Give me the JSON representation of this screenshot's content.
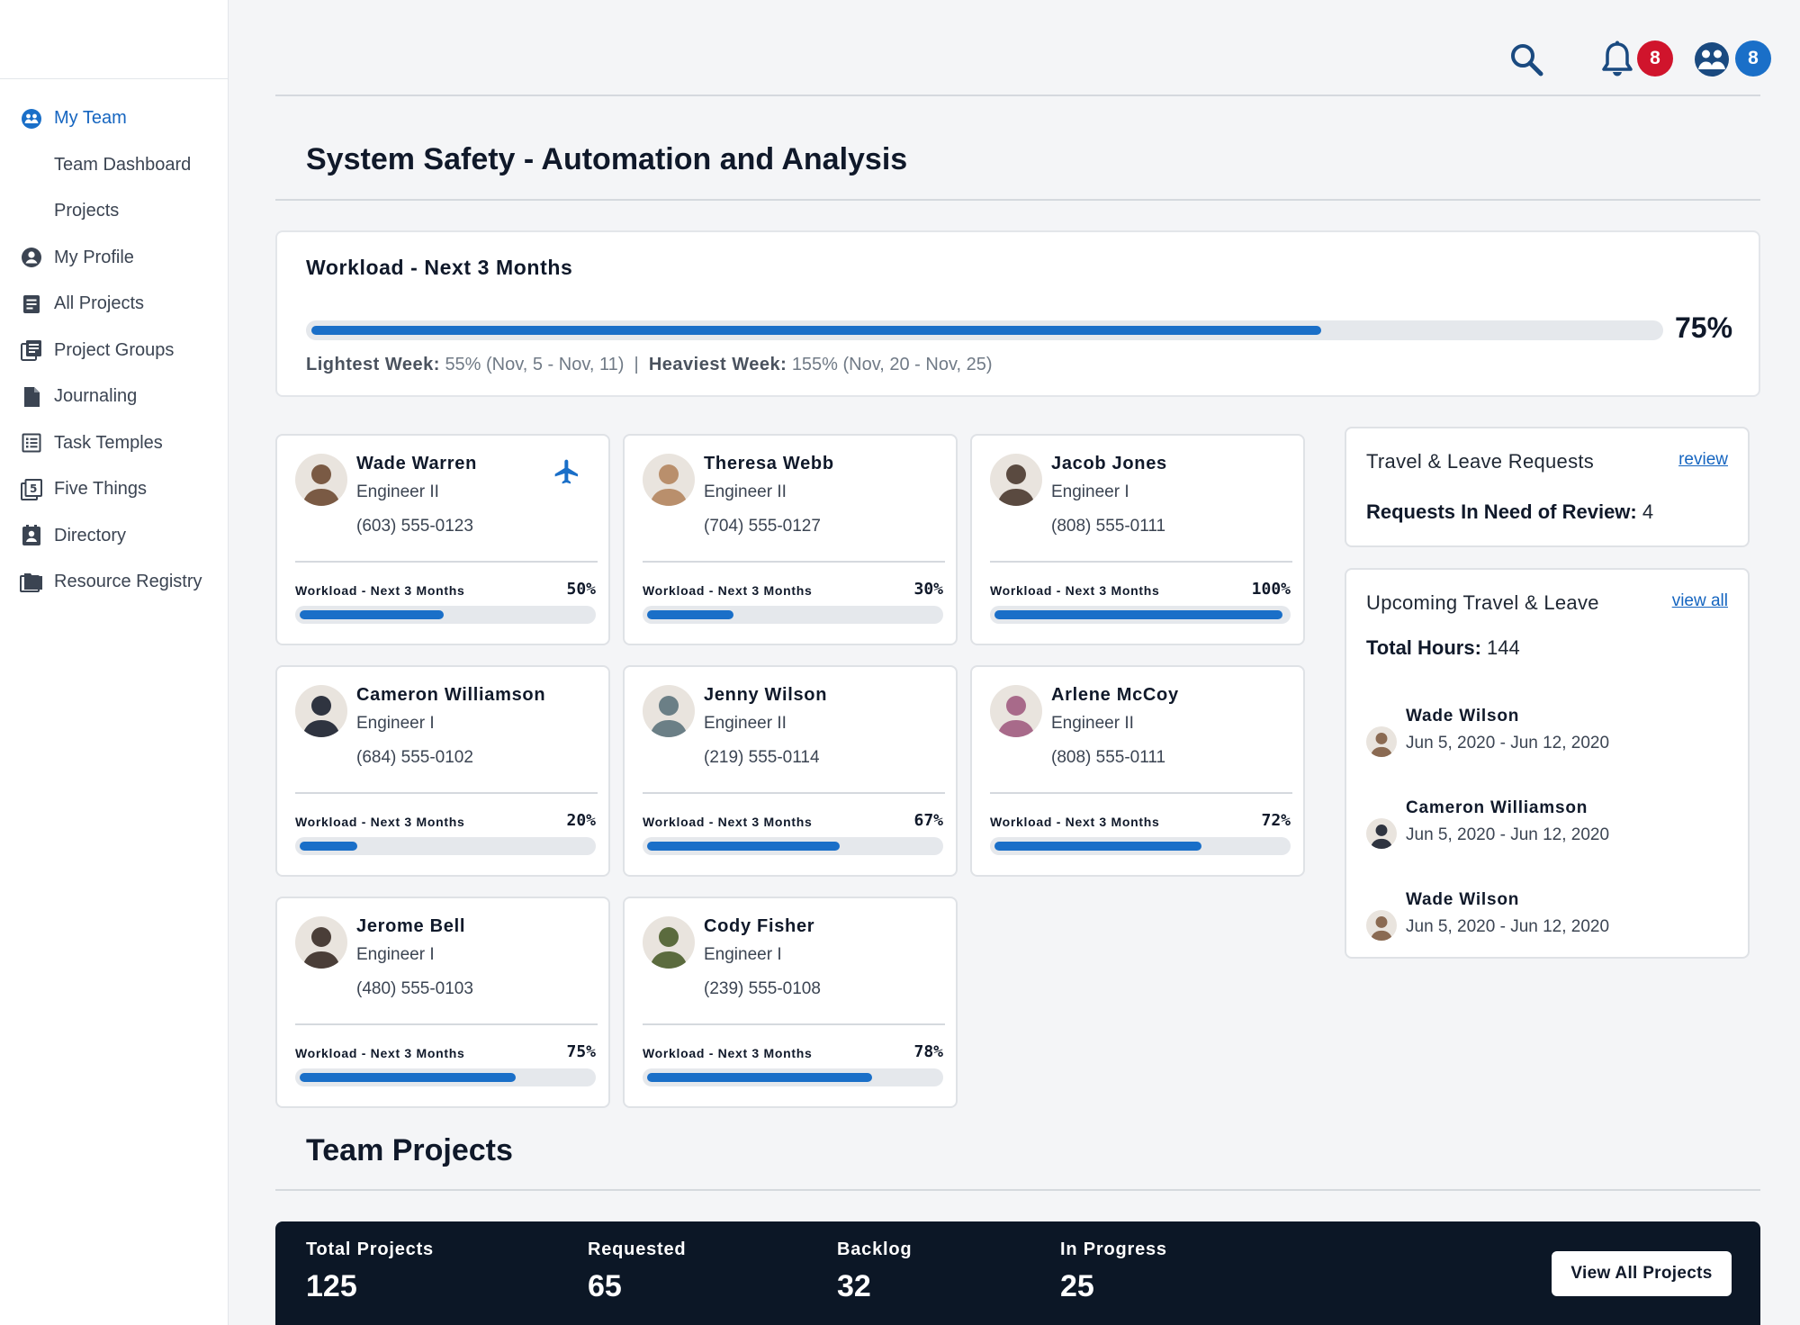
{
  "sidebar": {
    "items": [
      {
        "label": "My Team",
        "icon": "team-icon",
        "active": true
      },
      {
        "label": "Team Dashboard"
      },
      {
        "label": "Projects"
      },
      {
        "label": "My Profile",
        "icon": "profile-icon"
      },
      {
        "label": "All Projects",
        "icon": "document-list-icon"
      },
      {
        "label": "Project Groups",
        "icon": "stacked-documents-icon"
      },
      {
        "label": "Journaling",
        "icon": "file-icon"
      },
      {
        "label": "Task Temples",
        "icon": "checklist-icon"
      },
      {
        "label": "Five Things",
        "icon": "number-five-icon"
      },
      {
        "label": "Directory",
        "icon": "contact-book-icon"
      },
      {
        "label": "Resource Registry",
        "icon": "folder-icon"
      }
    ]
  },
  "topbar": {
    "notifications_count": "8",
    "team_count": "8"
  },
  "page": {
    "title": "System Safety -  Automation and Analysis"
  },
  "summary": {
    "heading": "Workload - Next 3 Months",
    "percent_label": "75%",
    "progress": 0.75,
    "lightest_label": "Lightest Week:",
    "lightest_value": "55% (Nov, 5 - Nov, 11)",
    "separator": "|",
    "heaviest_label": "Heaviest Week:",
    "heaviest_value": "155% (Nov, 20 - Nov, 25)"
  },
  "workload_label": "Workload - Next 3 Months",
  "members": [
    {
      "name": "Wade Warren",
      "role": "Engineer II",
      "phone": "(603) 555-0123",
      "workload": "50%",
      "progress": 0.5,
      "traveling": true,
      "avatar_color": "#7a5a44"
    },
    {
      "name": "Theresa Webb",
      "role": "Engineer II",
      "phone": "(704) 555-0127",
      "workload": "30%",
      "progress": 0.3,
      "traveling": false,
      "avatar_color": "#b98f6c"
    },
    {
      "name": "Jacob Jones",
      "role": "Engineer I",
      "phone": "(808) 555-0111",
      "workload": "100%",
      "progress": 1.0,
      "traveling": false,
      "avatar_color": "#5a4a40"
    },
    {
      "name": "Cameron Williamson",
      "role": "Engineer I",
      "phone": "(684) 555-0102",
      "workload": "20%",
      "progress": 0.2,
      "traveling": false,
      "avatar_color": "#2f3440"
    },
    {
      "name": "Jenny Wilson",
      "role": "Engineer II",
      "phone": "(219) 555-0114",
      "workload": "67%",
      "progress": 0.67,
      "traveling": false,
      "avatar_color": "#6b7f86"
    },
    {
      "name": "Arlene McCoy",
      "role": "Engineer II",
      "phone": "(808) 555-0111",
      "workload": "72%",
      "progress": 0.72,
      "traveling": false,
      "avatar_color": "#a86a8a"
    },
    {
      "name": "Jerome Bell",
      "role": "Engineer I",
      "phone": "(480) 555-0103",
      "workload": "75%",
      "progress": 0.75,
      "traveling": false,
      "avatar_color": "#4a3e38"
    },
    {
      "name": "Cody Fisher",
      "role": "Engineer I",
      "phone": "(239) 555-0108",
      "workload": "78%",
      "progress": 0.78,
      "traveling": false,
      "avatar_color": "#5b6b3e"
    }
  ],
  "requests": {
    "title": "Travel & Leave Requests",
    "link": "review",
    "label": "Requests In Need of Review:",
    "value": "4"
  },
  "upcoming": {
    "title": "Upcoming Travel & Leave",
    "link": "view all",
    "total_label": "Total Hours:",
    "total_value": "144",
    "items": [
      {
        "name": "Wade Wilson",
        "dates": "Jun 5, 2020 - Jun 12, 2020",
        "avatar_color": "#8a6a52"
      },
      {
        "name": "Cameron Williamson",
        "dates": "Jun 5, 2020 - Jun 12, 2020",
        "avatar_color": "#2f3440"
      },
      {
        "name": "Wade Wilson",
        "dates": "Jun 5, 2020 - Jun 12, 2020",
        "avatar_color": "#8a6a52"
      }
    ]
  },
  "team_projects": {
    "title": "Team Projects",
    "stats": [
      {
        "label": "Total Projects",
        "value": "125"
      },
      {
        "label": "Requested",
        "value": "65"
      },
      {
        "label": "Backlog",
        "value": "32"
      },
      {
        "label": "In Progress",
        "value": "25"
      }
    ],
    "button": "View All Projects"
  },
  "colors": {
    "accent": "#1a6fc8",
    "alert": "#d0142c",
    "dark_bar": "#0c1726"
  }
}
